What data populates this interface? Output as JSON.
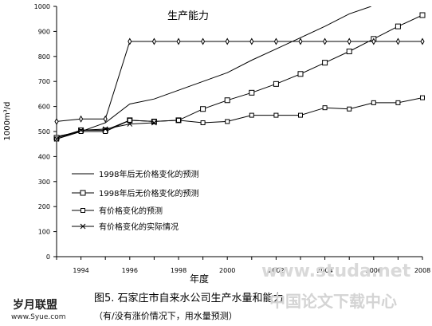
{
  "chart_data": {
    "type": "line",
    "title": "生产能力",
    "xlabel": "年度",
    "ylabel": "1000m³/d",
    "xlim": [
      1993,
      2008
    ],
    "ylim": [
      0,
      1000
    ],
    "x_ticks": [
      "1994",
      "1996",
      "1998",
      "2000",
      "2002",
      "2004",
      "2006",
      "2008"
    ],
    "x_tick_values": [
      1994,
      1996,
      1998,
      2000,
      2002,
      2004,
      2006,
      2008
    ],
    "y_ticks": [
      "0",
      "100",
      "200",
      "300",
      "400",
      "500",
      "600",
      "700",
      "800",
      "900",
      "1000"
    ],
    "y_tick_values": [
      0,
      100,
      200,
      300,
      400,
      500,
      600,
      700,
      800,
      900,
      1000
    ],
    "grid": false,
    "legend_position": "lower-left",
    "series": [
      {
        "name": "1998年后无价格变化的预测",
        "marker": "none",
        "x": [
          1993,
          1994,
          1995,
          1996,
          1997,
          1998,
          1999,
          2000,
          2001,
          2002,
          2003,
          2004,
          2005,
          2005.9
        ],
        "y": [
          480,
          500,
          535,
          610,
          630,
          665,
          700,
          735,
          785,
          830,
          875,
          920,
          970,
          1000
        ]
      },
      {
        "name": "1998年后无价格变化的预测",
        "marker": "square",
        "x": [
          1993,
          1994,
          1995,
          1996,
          1997,
          1998,
          1999,
          2000,
          2001,
          2002,
          2003,
          2004,
          2005,
          2006,
          2007,
          2008
        ],
        "y": [
          475,
          505,
          505,
          545,
          540,
          545,
          590,
          625,
          655,
          690,
          730,
          775,
          820,
          870,
          920,
          965
        ]
      },
      {
        "name": "有价格变化的预测",
        "marker": "square-small",
        "x": [
          1993,
          1994,
          1995,
          1996,
          1997,
          1998,
          1999,
          2000,
          2001,
          2002,
          2003,
          2004,
          2005,
          2006,
          2007,
          2008
        ],
        "y": [
          470,
          500,
          500,
          545,
          540,
          545,
          535,
          540,
          565,
          565,
          565,
          595,
          590,
          615,
          615,
          635
        ]
      },
      {
        "name": "有价格变化的实际情况",
        "marker": "x",
        "x": [
          1993,
          1994,
          1995,
          1996,
          1997
        ],
        "y": [
          470,
          505,
          510,
          530,
          535
        ]
      },
      {
        "name": "",
        "marker": "diamond",
        "x": [
          1993,
          1994,
          1995,
          1996,
          1997,
          1998,
          1999,
          2000,
          2001,
          2002,
          2003,
          2004,
          2005,
          2006,
          2007,
          2008
        ],
        "y": [
          540,
          550,
          550,
          860,
          860,
          860,
          860,
          860,
          860,
          860,
          860,
          860,
          860,
          860,
          860,
          860
        ]
      }
    ]
  },
  "caption": {
    "figure_title": "图5. 石家庄市自来水公司生产水量和能力",
    "subtitle": "（有/没有涨价情况下，用水量预测）"
  },
  "watermark": {
    "logo_text": "岁月联盟",
    "logo_url_text": "www.Syue.com",
    "site_url_text": "www.studa.net",
    "site_name_text": "中国论文下载中心"
  }
}
